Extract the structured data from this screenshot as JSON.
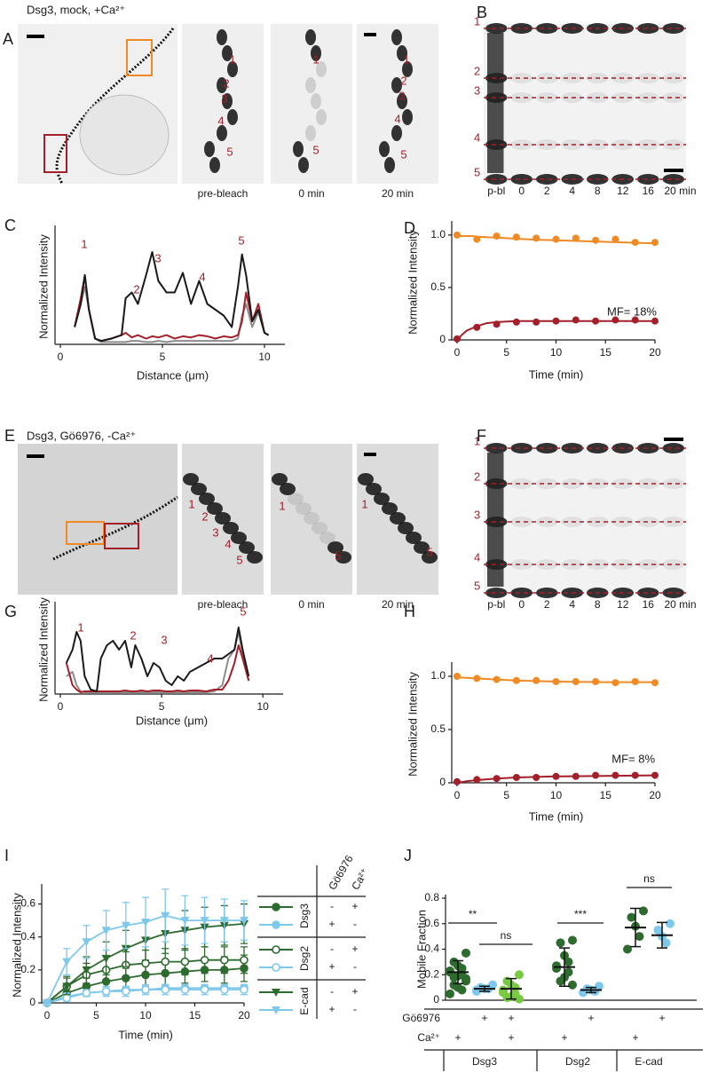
{
  "panel_letters": [
    "A",
    "B",
    "C",
    "D",
    "E",
    "F",
    "G",
    "H",
    "I",
    "J"
  ],
  "row_1": {
    "title": "Dsg3, mock, +Ca²⁺",
    "frame_labels": [
      "pre-bleach",
      "0 min",
      "20 min"
    ],
    "roi_labels": [
      "1",
      "2",
      "3",
      "4",
      "5"
    ],
    "kymo_labels": [
      "p-bl",
      "0",
      "2",
      "4",
      "8",
      "12",
      "16",
      "20 min"
    ]
  },
  "row_2": {
    "title": "Dsg3, Gö6976, -Ca²⁺",
    "frame_labels": [
      "pre-bleach",
      "0 min",
      "20 min"
    ],
    "roi_labels": [
      "1",
      "2",
      "3",
      "4",
      "5"
    ],
    "kymo_labels": [
      "p-bl",
      "0",
      "2",
      "4",
      "8",
      "12",
      "16",
      "20 min"
    ]
  },
  "chart_data": [
    {
      "type": "line",
      "ylabel": "Normalized Intensity",
      "xlabel": "Distance (μm)",
      "xlim": [
        0,
        11
      ],
      "xticks": [
        0,
        5,
        10
      ],
      "ylim": [
        0,
        1
      ],
      "x": [
        0.7,
        1.0,
        1.2,
        1.4,
        1.7,
        2.0,
        2.5,
        3.0,
        3.2,
        3.5,
        3.8,
        4.2,
        4.5,
        4.8,
        5.2,
        5.6,
        6.0,
        6.4,
        6.8,
        7.2,
        7.6,
        8.0,
        8.4,
        8.7,
        8.9,
        9.1,
        9.4,
        9.7,
        10.0,
        10.2
      ],
      "series": [
        {
          "color": "#8c8c8c",
          "values": [
            0.15,
            0.35,
            0.5,
            0.3,
            0.05,
            0.02,
            0.02,
            0.02,
            0.02,
            0.03,
            0.03,
            0.02,
            0.02,
            0.03,
            0.02,
            0.03,
            0.03,
            0.03,
            0.03,
            0.03,
            0.03,
            0.03,
            0.03,
            0.05,
            0.25,
            0.35,
            0.15,
            0.28,
            0.1,
            0.08
          ]
        },
        {
          "color": "#a3202a",
          "values": [
            0.15,
            0.4,
            0.6,
            0.3,
            0.05,
            0.03,
            0.05,
            0.08,
            0.1,
            0.06,
            0.08,
            0.05,
            0.07,
            0.06,
            0.08,
            0.05,
            0.07,
            0.06,
            0.08,
            0.07,
            0.05,
            0.07,
            0.06,
            0.08,
            0.2,
            0.45,
            0.2,
            0.35,
            0.1,
            0.08
          ]
        },
        {
          "color": "#1a1a1a",
          "values": [
            0.15,
            0.35,
            0.6,
            0.3,
            0.05,
            0.03,
            0.05,
            0.08,
            0.4,
            0.45,
            0.35,
            0.6,
            0.8,
            0.55,
            0.45,
            0.45,
            0.62,
            0.35,
            0.55,
            0.35,
            0.3,
            0.25,
            0.15,
            0.5,
            0.78,
            0.6,
            0.2,
            0.3,
            0.1,
            0.08
          ]
        }
      ],
      "annotations": [
        "1",
        "2",
        "3",
        "4",
        "5"
      ]
    },
    {
      "type": "scatter",
      "ylabel": "Normalized Intensity",
      "xlabel": "Time (min)",
      "xlim": [
        0,
        20
      ],
      "xticks": [
        0,
        5,
        10,
        15,
        20
      ],
      "ylim": [
        0,
        1.1
      ],
      "yticks": [
        0,
        0.5,
        {
          "value": 1,
          "label": "1.0"
        }
      ],
      "x": [
        0,
        2,
        4,
        6,
        8,
        10,
        12,
        14,
        16,
        18,
        20
      ],
      "series": [
        {
          "color": "#f08a24",
          "values": [
            1.0,
            0.96,
            0.99,
            0.98,
            0.97,
            0.96,
            0.97,
            0.95,
            0.96,
            0.93,
            0.93
          ]
        },
        {
          "color": "#a3202a",
          "values": [
            0.01,
            0.12,
            0.15,
            0.17,
            0.17,
            0.18,
            0.19,
            0.18,
            0.19,
            0.19,
            0.18
          ]
        }
      ],
      "fit_x": [
        0,
        0.5,
        1,
        1.5,
        2,
        3,
        4,
        6,
        8,
        10,
        15,
        20
      ],
      "fits": [
        {
          "color": "#f08a24",
          "values": [
            0.99,
            0.99,
            0.99,
            0.99,
            0.985,
            0.98,
            0.975,
            0.965,
            0.955,
            0.95,
            0.935,
            0.92
          ]
        },
        {
          "color": "#a3202a",
          "values": [
            0,
            0.05,
            0.09,
            0.11,
            0.13,
            0.16,
            0.17,
            0.18,
            0.18,
            0.18,
            0.18,
            0.18
          ]
        }
      ],
      "annotation": "MF= 18%"
    },
    {
      "type": "line",
      "ylabel": "Normalized Intensity",
      "xlabel": "Distance (μm)",
      "xlim": [
        0,
        11
      ],
      "xticks": [
        0,
        5,
        10
      ],
      "ylim": [
        0,
        1
      ],
      "x": [
        0.3,
        0.6,
        0.8,
        1.0,
        1.2,
        1.5,
        1.8,
        2.0,
        2.3,
        2.6,
        2.9,
        3.2,
        3.5,
        3.7,
        4.0,
        4.3,
        4.6,
        4.9,
        5.2,
        5.5,
        5.8,
        6.1,
        6.4,
        6.8,
        7.2,
        7.6,
        8.0,
        8.3,
        8.6,
        8.8,
        9.0,
        9.3
      ],
      "series": [
        {
          "color": "#8c8c8c",
          "values": [
            0.2,
            0.25,
            0.1,
            0.03,
            0.02,
            0.02,
            0.02,
            0.02,
            0.02,
            0.02,
            0.02,
            0.02,
            0.02,
            0.02,
            0.02,
            0.02,
            0.02,
            0.02,
            0.02,
            0.02,
            0.02,
            0.02,
            0.02,
            0.02,
            0.02,
            0.03,
            0.1,
            0.4,
            0.5,
            0.7,
            0.45,
            0.15
          ]
        },
        {
          "color": "#a3202a",
          "values": [
            0.35,
            0.1,
            0.05,
            0.02,
            0.03,
            0.03,
            0.03,
            0.03,
            0.03,
            0.03,
            0.03,
            0.04,
            0.03,
            0.03,
            0.04,
            0.03,
            0.04,
            0.04,
            0.03,
            0.03,
            0.04,
            0.03,
            0.04,
            0.04,
            0.03,
            0.05,
            0.05,
            0.15,
            0.35,
            0.55,
            0.4,
            0.15
          ]
        },
        {
          "color": "#1a1a1a",
          "values": [
            0.35,
            0.5,
            0.7,
            0.6,
            0.2,
            0.05,
            0.03,
            0.4,
            0.55,
            0.6,
            0.5,
            0.6,
            0.3,
            0.55,
            0.4,
            0.2,
            0.35,
            0.3,
            0.15,
            0.1,
            0.2,
            0.15,
            0.25,
            0.3,
            0.35,
            0.4,
            0.4,
            0.45,
            0.5,
            0.75,
            0.5,
            0.2
          ]
        }
      ],
      "annotations": [
        "1",
        "2",
        "3",
        "4",
        "5"
      ]
    },
    {
      "type": "scatter",
      "ylabel": "Normalized Intensity",
      "xlabel": "Time (min)",
      "xlim": [
        0,
        20
      ],
      "xticks": [
        0,
        5,
        10,
        15,
        20
      ],
      "ylim": [
        0,
        1.1
      ],
      "yticks": [
        0,
        0.5,
        {
          "value": 1,
          "label": "1.0"
        }
      ],
      "x": [
        0,
        2,
        4,
        6,
        8,
        10,
        12,
        14,
        16,
        18,
        20
      ],
      "series": [
        {
          "color": "#f08a24",
          "values": [
            1.0,
            0.98,
            0.97,
            0.96,
            0.96,
            0.95,
            0.95,
            0.95,
            0.94,
            0.95,
            0.94
          ]
        },
        {
          "color": "#a3202a",
          "values": [
            0.01,
            0.03,
            0.04,
            0.05,
            0.05,
            0.06,
            0.06,
            0.07,
            0.07,
            0.07,
            0.07
          ]
        }
      ],
      "fit_x": [
        0,
        1,
        2,
        4,
        6,
        8,
        10,
        15,
        20
      ],
      "fits": [
        {
          "color": "#f08a24",
          "values": [
            0.99,
            0.985,
            0.98,
            0.97,
            0.96,
            0.955,
            0.95,
            0.945,
            0.945
          ]
        },
        {
          "color": "#a3202a",
          "values": [
            0,
            0.015,
            0.025,
            0.04,
            0.05,
            0.055,
            0.06,
            0.065,
            0.07
          ]
        }
      ],
      "annotation": "MF= 8%"
    },
    {
      "type": "errorbar",
      "ylabel": "Normalized Intensity",
      "xlabel": "Time (min)",
      "xlim": [
        0,
        20
      ],
      "xticks": [
        0,
        5,
        10,
        15,
        20
      ],
      "ylim": [
        0,
        0.7
      ],
      "yticks": [
        0,
        0.2,
        0.4,
        0.6
      ],
      "x": [
        0,
        2,
        4,
        6,
        8,
        10,
        12,
        14,
        16,
        18,
        20
      ],
      "series": [
        {
          "color": "#2e6b2e",
          "marker": "circle",
          "signs": [
            "-",
            "+"
          ],
          "values": [
            0,
            0.06,
            0.1,
            0.13,
            0.15,
            0.17,
            0.18,
            0.19,
            0.2,
            0.2,
            0.21
          ],
          "errors": [
            0,
            0.04,
            0.05,
            0.06,
            0.06,
            0.07,
            0.07,
            0.07,
            0.07,
            0.08,
            0.08
          ]
        },
        {
          "color": "#7ec8ec",
          "marker": "circle",
          "signs": [
            "+",
            "-"
          ],
          "values": [
            0,
            0.04,
            0.06,
            0.07,
            0.08,
            0.08,
            0.09,
            0.09,
            0.09,
            0.09,
            0.09
          ],
          "errors": [
            0,
            0.02,
            0.02,
            0.02,
            0.02,
            0.02,
            0.02,
            0.02,
            0.02,
            0.02,
            0.02
          ]
        },
        {
          "color": "#2e6b2e",
          "marker": "circle-open",
          "signs": [
            "-",
            "+"
          ],
          "values": [
            0,
            0.1,
            0.17,
            0.2,
            0.23,
            0.24,
            0.25,
            0.25,
            0.26,
            0.26,
            0.26
          ],
          "errors": [
            0,
            0.06,
            0.07,
            0.08,
            0.08,
            0.08,
            0.08,
            0.08,
            0.08,
            0.08,
            0.08
          ]
        },
        {
          "color": "#7ec8ec",
          "marker": "circle-open",
          "signs": [
            "+",
            "-"
          ],
          "values": [
            0,
            0.03,
            0.06,
            0.07,
            0.07,
            0.08,
            0.08,
            0.08,
            0.08,
            0.08,
            0.08
          ],
          "errors": [
            0,
            0.02,
            0.02,
            0.03,
            0.03,
            0.03,
            0.03,
            0.03,
            0.03,
            0.03,
            0.03
          ]
        },
        {
          "color": "#2e6b2e",
          "marker": "triangle",
          "signs": [
            "-",
            "+"
          ],
          "values": [
            0,
            0.1,
            0.2,
            0.27,
            0.33,
            0.38,
            0.42,
            0.44,
            0.46,
            0.47,
            0.48
          ],
          "errors": [
            0,
            0.05,
            0.08,
            0.1,
            0.11,
            0.12,
            0.12,
            0.12,
            0.12,
            0.12,
            0.12
          ]
        },
        {
          "color": "#7ec8ec",
          "marker": "triangle",
          "signs": [
            "+",
            "-"
          ],
          "values": [
            0,
            0.25,
            0.37,
            0.44,
            0.47,
            0.49,
            0.53,
            0.5,
            0.5,
            0.5,
            0.5
          ],
          "errors": [
            0,
            0.08,
            0.1,
            0.12,
            0.14,
            0.15,
            0.16,
            0.15,
            0.14,
            0.13,
            0.12
          ]
        }
      ],
      "legend": {
        "headers": [
          "Gö6976",
          "Ca²⁺"
        ],
        "groups": [
          "Dsg3",
          "Dsg2",
          "E-cad"
        ]
      }
    },
    {
      "type": "dot",
      "ylabel": "Mobile Fraction",
      "ylim": [
        0,
        0.8
      ],
      "yticks": [
        0,
        0.2,
        0.4,
        0.6,
        0.8
      ],
      "row_labels": [
        "Gö6976",
        "Ca²⁺"
      ],
      "go6976": [
        null,
        "+",
        "+",
        null,
        "+",
        null,
        "+"
      ],
      "ca": [
        "+",
        null,
        "+",
        "+",
        null,
        "+",
        null
      ],
      "groups": [
        "Dsg3",
        "Dsg2",
        "E-cad"
      ],
      "columns": [
        {
          "color": "#2e6b2e",
          "points": [
            0.37,
            0.3,
            0.27,
            0.25,
            0.23,
            0.22,
            0.2,
            0.19,
            0.18,
            0.17,
            0.15,
            0.12,
            0.1,
            0.08,
            0.05
          ],
          "mean": 0.22,
          "sd": 0.09
        },
        {
          "color": "#7ec8ec",
          "points": [
            0.12,
            0.1,
            0.09,
            0.09,
            0.08,
            0.07
          ],
          "mean": 0.09,
          "sd": 0.02
        },
        {
          "color": "#7ac943",
          "points": [
            0.2,
            0.15,
            0.12,
            0.1,
            0.08,
            0.06,
            0.05,
            0.03,
            0.02,
            0.01
          ],
          "mean": 0.09,
          "sd": 0.08
        },
        {
          "color": "#2e6b2e",
          "points": [
            0.47,
            0.45,
            0.35,
            0.3,
            0.27,
            0.25,
            0.22,
            0.18,
            0.15,
            0.12
          ],
          "mean": 0.26,
          "sd": 0.15
        },
        {
          "color": "#7ec8ec",
          "points": [
            0.11,
            0.09,
            0.08,
            0.07,
            0.06
          ],
          "mean": 0.08,
          "sd": 0.02
        },
        {
          "color": "#2e6b2e",
          "points": [
            0.7,
            0.65,
            0.58,
            0.5,
            0.4
          ],
          "mean": 0.57,
          "sd": 0.15
        },
        {
          "color": "#7ec8ec",
          "points": [
            0.6,
            0.55,
            0.5,
            0.45
          ],
          "mean": 0.51,
          "sd": 0.1
        }
      ],
      "comparisons": [
        "**",
        "ns",
        "***",
        "ns"
      ]
    }
  ]
}
